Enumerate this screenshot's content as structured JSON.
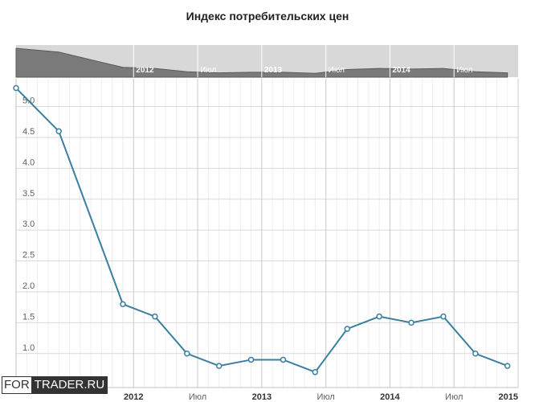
{
  "chart_data": {
    "type": "line",
    "title": "Индекс потребительских цен",
    "xlabel": "",
    "ylabel": "",
    "ylim": [
      0.45,
      5.45
    ],
    "y_ticks": [
      "1.0",
      "1.5",
      "2.0",
      "2.5",
      "3.0",
      "3.5",
      "4.0",
      "4.5",
      "5.0"
    ],
    "x_tick_labels": [
      {
        "label": "2012",
        "date": "2012-01",
        "bold": true
      },
      {
        "label": "Июл",
        "date": "2012-07",
        "bold": false
      },
      {
        "label": "2013",
        "date": "2013-01",
        "bold": true
      },
      {
        "label": "Июл",
        "date": "2013-07",
        "bold": false
      },
      {
        "label": "2014",
        "date": "2014-01",
        "bold": true
      },
      {
        "label": "Июл",
        "date": "2014-07",
        "bold": false
      },
      {
        "label": "2015",
        "date": "2015-01",
        "bold": true
      }
    ],
    "x_range": [
      "2011-02",
      "2015-01"
    ],
    "grid": true,
    "series": [
      {
        "color": "#3a7fa0",
        "points": [
          {
            "x": "2011-02",
            "y": 5.3
          },
          {
            "x": "2011-06",
            "y": 4.6
          },
          {
            "x": "2011-12",
            "y": 1.8
          },
          {
            "x": "2012-03",
            "y": 1.6
          },
          {
            "x": "2012-06",
            "y": 1.0
          },
          {
            "x": "2012-09",
            "y": 0.8
          },
          {
            "x": "2012-12",
            "y": 0.9
          },
          {
            "x": "2013-03",
            "y": 0.9
          },
          {
            "x": "2013-06",
            "y": 0.7
          },
          {
            "x": "2013-09",
            "y": 1.4
          },
          {
            "x": "2013-12",
            "y": 1.6
          },
          {
            "x": "2014-03",
            "y": 1.5
          },
          {
            "x": "2014-06",
            "y": 1.6
          },
          {
            "x": "2014-09",
            "y": 1.0
          },
          {
            "x": "2014-12",
            "y": 0.8
          }
        ]
      }
    ],
    "navigator": {
      "labels": [
        "2012",
        "Июл",
        "2013",
        "Июл",
        "2014",
        "Июл"
      ],
      "fill_color": "#7a7a7a",
      "background_color": "#d8d8d8"
    }
  },
  "watermark": {
    "left": "FOR",
    "right": "TRADER.RU"
  }
}
